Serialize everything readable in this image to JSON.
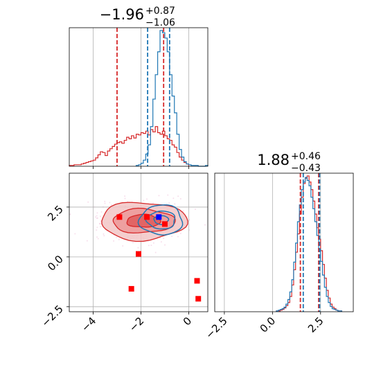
{
  "chart_data": [
    {
      "type": "histogram",
      "panel": "top-left",
      "title": {
        "value": "−1.96",
        "upper": "+0.87",
        "lower": "−1.06"
      },
      "xlim": [
        -5,
        0.8
      ],
      "xticks": [
        -4,
        -2,
        0
      ],
      "grid": true,
      "colors": {
        "red": "#d62728",
        "blue": "#1f77b4"
      },
      "red_quantiles": [
        -3.0,
        -1.05
      ],
      "blue_quantiles": [
        -1.72,
        -0.8
      ],
      "red_hist": {
        "bins": [
          -5.0,
          -4.9,
          -4.8,
          -4.7,
          -4.6,
          -4.5,
          -4.4,
          -4.3,
          -4.2,
          -4.1,
          -4.0,
          -3.9,
          -3.8,
          -3.7,
          -3.6,
          -3.5,
          -3.4,
          -3.3,
          -3.2,
          -3.1,
          -3.0,
          -2.9,
          -2.8,
          -2.7,
          -2.6,
          -2.5,
          -2.4,
          -2.3,
          -2.2,
          -2.1,
          -2.0,
          -1.9,
          -1.8,
          -1.7,
          -1.6,
          -1.5,
          -1.4,
          -1.3,
          -1.2,
          -1.1,
          -1.0,
          -0.9,
          -0.8,
          -0.7,
          -0.6,
          -0.5,
          -0.4,
          -0.3,
          -0.2,
          -0.1,
          0.0
        ],
        "counts": [
          1,
          1,
          2,
          2,
          2,
          3,
          4,
          5,
          6,
          7,
          8,
          11,
          15,
          19,
          18,
          14,
          20,
          23,
          26,
          29,
          31,
          32,
          30,
          34,
          38,
          36,
          40,
          37,
          42,
          41,
          44,
          43,
          46,
          41,
          48,
          45,
          52,
          44,
          42,
          46,
          40,
          36,
          34,
          28,
          25,
          18,
          12,
          8,
          5,
          3
        ]
      },
      "blue_hist": {
        "bins": [
          -2.2,
          -2.1,
          -2.0,
          -1.9,
          -1.8,
          -1.7,
          -1.6,
          -1.5,
          -1.4,
          -1.3,
          -1.2,
          -1.1,
          -1.0,
          -0.9,
          -0.8,
          -0.7,
          -0.6,
          -0.5,
          -0.4,
          -0.3,
          -0.2,
          -0.1,
          0.0,
          0.1,
          0.2,
          0.3,
          0.4,
          0.5,
          0.6,
          0.7,
          0.8
        ],
        "counts": [
          1,
          2,
          4,
          8,
          16,
          28,
          52,
          88,
          120,
          150,
          178,
          175,
          168,
          150,
          120,
          92,
          70,
          42,
          22,
          12,
          6,
          3,
          2,
          1,
          1,
          1,
          0,
          0,
          0,
          1
        ]
      }
    },
    {
      "type": "scatter",
      "panel": "bottom-left",
      "xlim": [
        -5,
        0.8
      ],
      "ylim": [
        -2.75,
        4.2
      ],
      "xticks": [
        -4,
        -2,
        0
      ],
      "yticks": [
        -2.5,
        0.0,
        2.5
      ],
      "xtick_labels": [
        "−4",
        "−2",
        "0"
      ],
      "ytick_labels": [
        "−2.5",
        "0.0",
        "2.5"
      ],
      "grid": true,
      "red_points": [
        [
          -2.9,
          2.0
        ],
        [
          -1.75,
          2.0
        ],
        [
          -1.0,
          1.65
        ],
        [
          -2.1,
          0.15
        ],
        [
          -2.4,
          -1.6
        ],
        [
          0.35,
          -1.2
        ],
        [
          0.4,
          -2.1
        ]
      ],
      "blue_points": [
        [
          -1.25,
          2.0
        ]
      ],
      "red_contours": {
        "center": [
          -1.9,
          1.8
        ],
        "levels": [
          [
            1.8,
            0.95
          ],
          [
            1.3,
            0.6
          ],
          [
            0.7,
            0.32
          ]
        ]
      },
      "blue_contours": {
        "center": [
          -1.15,
          1.85
        ],
        "levels": [
          [
            0.9,
            0.75
          ],
          [
            0.6,
            0.45
          ],
          [
            0.3,
            0.22
          ]
        ]
      }
    },
    {
      "type": "histogram",
      "panel": "bottom-right",
      "title": {
        "value": "1.88",
        "upper": "+0.46",
        "lower": "−0.43"
      },
      "xlim": [
        -3.0,
        4.2
      ],
      "xticks": [
        -2.5,
        0.0,
        2.5
      ],
      "xtick_labels": [
        "−2.5",
        "0.0",
        "2.5"
      ],
      "grid": true,
      "red_quantiles": [
        1.45,
        2.4
      ],
      "blue_quantiles": [
        1.6,
        2.45
      ],
      "red_hist": {
        "bins": [
          0.2,
          0.3,
          0.4,
          0.5,
          0.6,
          0.7,
          0.8,
          0.9,
          1.0,
          1.1,
          1.2,
          1.3,
          1.4,
          1.5,
          1.6,
          1.7,
          1.8,
          1.9,
          2.0,
          2.1,
          2.2,
          2.3,
          2.4,
          2.5,
          2.6,
          2.7,
          2.8,
          2.9,
          3.0,
          3.1,
          3.2,
          3.3,
          3.4,
          3.5,
          3.6
        ],
        "counts": [
          1,
          1,
          2,
          3,
          5,
          8,
          12,
          20,
          35,
          55,
          78,
          102,
          128,
          150,
          168,
          175,
          178,
          170,
          160,
          145,
          128,
          110,
          95,
          80,
          62,
          44,
          28,
          18,
          10,
          6,
          4,
          2,
          1,
          1
        ]
      },
      "blue_hist": {
        "bins": [
          0.2,
          0.3,
          0.4,
          0.5,
          0.6,
          0.7,
          0.8,
          0.9,
          1.0,
          1.1,
          1.2,
          1.3,
          1.4,
          1.5,
          1.6,
          1.7,
          1.8,
          1.9,
          2.0,
          2.1,
          2.2,
          2.3,
          2.4,
          2.5,
          2.6,
          2.7,
          2.8,
          2.9,
          3.0,
          3.1,
          3.2,
          3.3,
          3.4,
          3.5,
          3.6
        ],
        "counts": [
          1,
          2,
          3,
          4,
          6,
          10,
          16,
          26,
          42,
          65,
          90,
          118,
          140,
          160,
          170,
          176,
          172,
          165,
          150,
          135,
          118,
          100,
          82,
          66,
          48,
          32,
          20,
          12,
          7,
          4,
          3,
          2,
          1,
          1
        ]
      }
    }
  ]
}
